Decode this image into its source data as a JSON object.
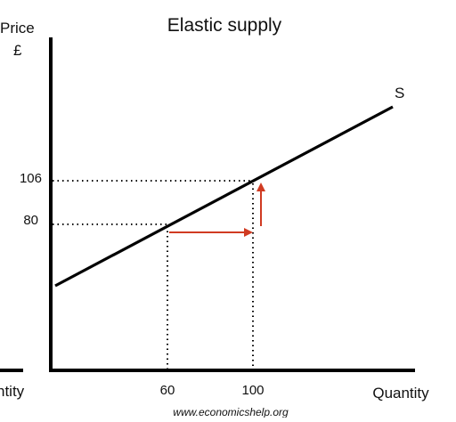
{
  "diagram": {
    "title": "Elastic supply",
    "y_axis_label": "Price",
    "y_axis_unit": "£",
    "x_axis_label": "Quantity",
    "x_axis_label_left_fragment": "ntity",
    "curve_label": "S",
    "price_ticks": [
      "106",
      "80"
    ],
    "quantity_ticks": [
      "60",
      "100"
    ],
    "source": "www.economicshelp.org"
  },
  "chart_data": {
    "type": "line",
    "title": "Elastic supply",
    "ylabel": "Price £",
    "xlabel": "Quantity",
    "series": [
      {
        "name": "S",
        "points": [
          [
            60,
            80
          ],
          [
            100,
            106
          ]
        ]
      }
    ],
    "annotations": [
      {
        "type": "arrow",
        "direction": "right",
        "from_quantity": 60,
        "to_quantity": 100,
        "at_price": 80,
        "color": "#d03b22"
      },
      {
        "type": "arrow",
        "direction": "up",
        "from_price": 80,
        "to_price": 106,
        "at_quantity": 100,
        "color": "#d03b22"
      }
    ],
    "guides": [
      {
        "price": 106,
        "quantity": 100
      },
      {
        "price": 80,
        "quantity": 60
      }
    ],
    "colors": {
      "curve": "#000000",
      "axes": "#000000",
      "arrows": "#d03b22",
      "guides": "#000000"
    }
  }
}
